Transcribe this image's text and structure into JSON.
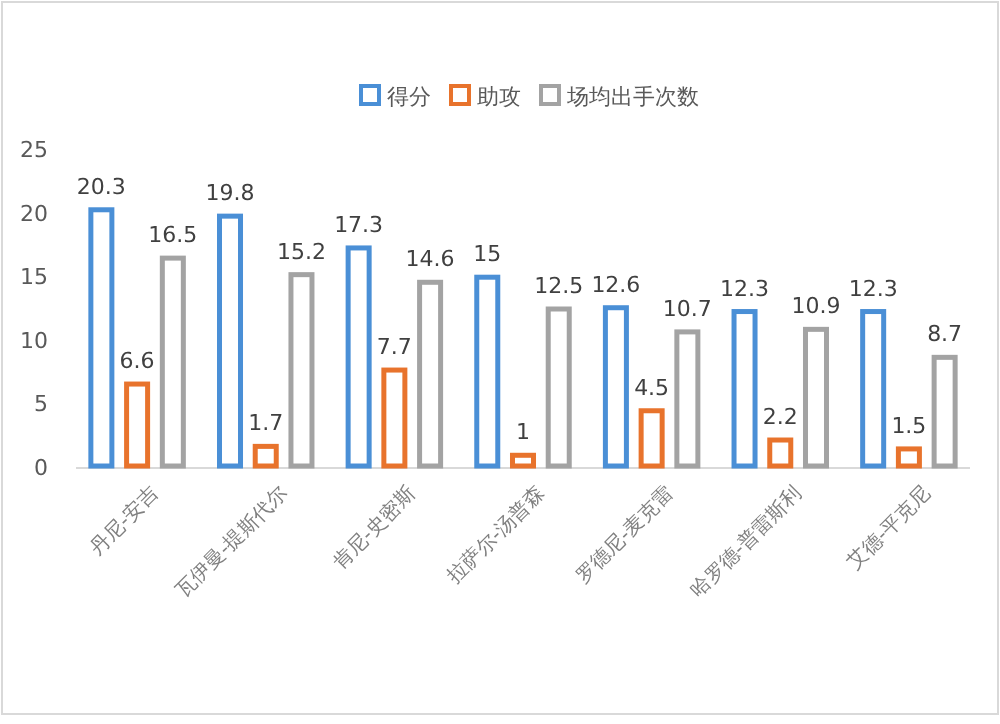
{
  "chart_data": {
    "type": "bar",
    "categories": [
      "丹尼-安吉",
      "瓦伊曼-提斯代尔",
      "肯尼-史密斯",
      "拉萨尔-汤普森",
      "罗德尼-麦克雷",
      "哈罗德-普雷斯利",
      "艾德-平克尼"
    ],
    "series": [
      {
        "name": "得分",
        "color": "#4a8fd6",
        "values": [
          20.3,
          19.8,
          17.3,
          15,
          12.6,
          12.3,
          12.3
        ]
      },
      {
        "name": "助攻",
        "color": "#e8732c",
        "values": [
          6.6,
          1.7,
          7.7,
          1,
          4.5,
          2.2,
          1.5
        ]
      },
      {
        "name": "场均出手次数",
        "color": "#a3a3a3",
        "values": [
          16.5,
          15.2,
          14.6,
          12.5,
          10.7,
          10.9,
          8.7
        ]
      }
    ],
    "ylim": [
      0,
      25
    ],
    "yticks": [
      0,
      5,
      10,
      15,
      20,
      25
    ],
    "grid": false,
    "legend": "top",
    "data_labels": true
  }
}
